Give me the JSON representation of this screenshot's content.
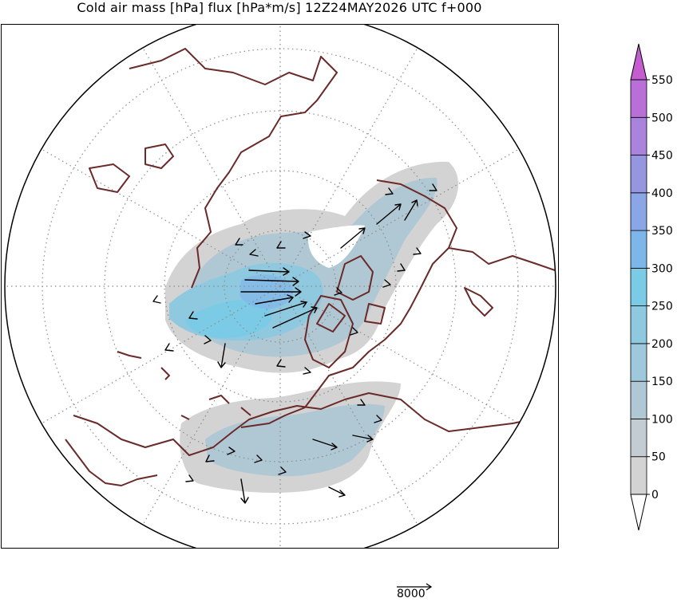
{
  "title": "Cold air mass [hPa] flux [hPa*m/s] 12Z24MAY2026 UTC f+000",
  "colorbar": {
    "levels": [
      "0",
      "50",
      "100",
      "150",
      "200",
      "250",
      "300",
      "350",
      "400",
      "450",
      "500",
      "550"
    ],
    "colors": [
      "#d3d3d3",
      "#c2ccd2",
      "#b0c8d4",
      "#a0c8dc",
      "#8fc9e0",
      "#7ccbe6",
      "#7fb6ea",
      "#8aa6e6",
      "#9695e0",
      "#a884dc",
      "#b86fd8",
      "#c45ed0"
    ],
    "extend_colors": {
      "min": "#ffffff",
      "max": "#c45ed0"
    }
  },
  "reference_vector": {
    "label": "8000"
  },
  "map": {
    "projection": "polar stereographic (north pole)",
    "coastline_color": "#6b2a2a",
    "grid_color": "#8c8c8c"
  }
}
